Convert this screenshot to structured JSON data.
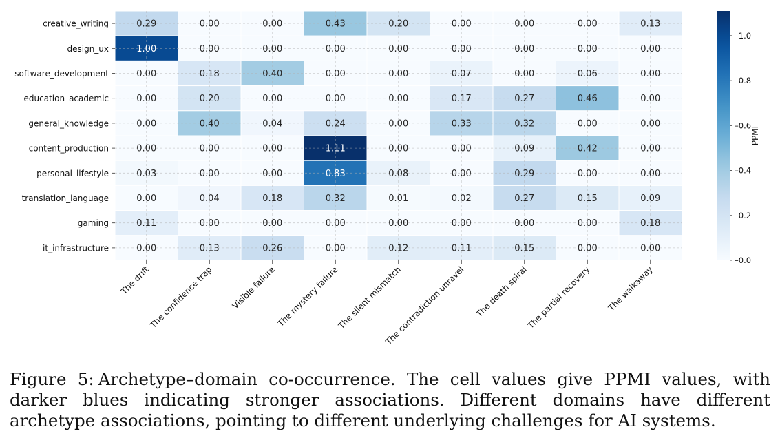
{
  "chart_data": {
    "type": "heatmap",
    "rows": [
      "creative_writing",
      "design_ux",
      "software_development",
      "education_academic",
      "general_knowledge",
      "content_production",
      "personal_lifestyle",
      "translation_language",
      "gaming",
      "it_infrastructure"
    ],
    "columns": [
      "The drift",
      "The confidence trap",
      "Visible failure",
      "The mystery failure",
      "The silent mismatch",
      "The contradiction unravel",
      "The death spiral",
      "The partial recovery",
      "The walkaway"
    ],
    "values": [
      [
        0.29,
        0.0,
        0.0,
        0.43,
        0.2,
        0.0,
        0.0,
        0.0,
        0.13
      ],
      [
        1.0,
        0.0,
        0.0,
        0.0,
        0.0,
        0.0,
        0.0,
        0.0,
        0.0
      ],
      [
        0.0,
        0.18,
        0.4,
        0.0,
        0.0,
        0.07,
        0.0,
        0.06,
        0.0
      ],
      [
        0.0,
        0.2,
        0.0,
        0.0,
        0.0,
        0.17,
        0.27,
        0.46,
        0.0
      ],
      [
        0.0,
        0.4,
        0.04,
        0.24,
        0.0,
        0.33,
        0.32,
        0.0,
        0.0
      ],
      [
        0.0,
        0.0,
        0.0,
        1.11,
        0.0,
        0.0,
        0.09,
        0.42,
        0.0
      ],
      [
        0.03,
        0.0,
        0.0,
        0.83,
        0.08,
        0.0,
        0.29,
        0.0,
        0.0
      ],
      [
        0.0,
        0.04,
        0.18,
        0.32,
        0.01,
        0.02,
        0.27,
        0.15,
        0.09
      ],
      [
        0.11,
        0.0,
        0.0,
        0.0,
        0.0,
        0.0,
        0.0,
        0.0,
        0.18
      ],
      [
        0.0,
        0.13,
        0.26,
        0.0,
        0.12,
        0.11,
        0.15,
        0.0,
        0.0
      ]
    ],
    "colorbar": {
      "label": "PPMI",
      "min": 0.0,
      "max": 1.11,
      "ticks": [
        0.0,
        0.2,
        0.4,
        0.6,
        0.8,
        1.0
      ],
      "tick_labels": [
        "0.0",
        "0.2",
        "0.4",
        "0.6",
        "0.8",
        "1.0"
      ]
    },
    "grid": true,
    "colors": {
      "low": "#f7fbff",
      "high": "#08306b"
    }
  },
  "caption": {
    "label": "Figure 5:",
    "text": "Archetype–domain co-occurrence. The cell values give PPMI values, with darker blues indicating stronger associations. Different domains have different archetype associations, pointing to different underlying challenges for AI systems."
  }
}
